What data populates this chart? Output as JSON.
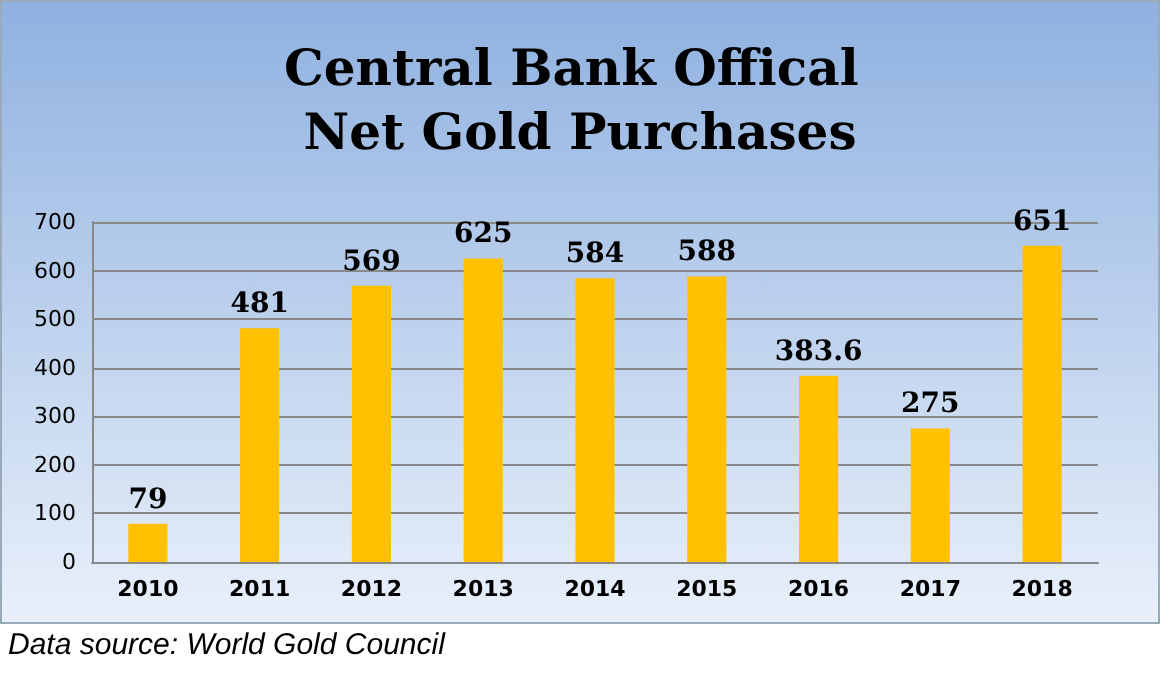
{
  "chart_data": {
    "type": "bar",
    "title": "Central Bank Offical Net Gold Purchases",
    "categories": [
      "2010",
      "2011",
      "2012",
      "2013",
      "2014",
      "2015",
      "2016",
      "2017",
      "2018"
    ],
    "values": [
      79,
      481,
      569,
      625,
      584,
      588,
      383.6,
      275,
      651
    ],
    "color": "#ffc000",
    "ylim": [
      0,
      700
    ],
    "yticks": [
      0,
      100,
      200,
      300,
      400,
      500,
      600,
      700
    ],
    "grid": "y",
    "data_labels": true,
    "annotations": [
      "Data source: World Gold Council"
    ]
  }
}
